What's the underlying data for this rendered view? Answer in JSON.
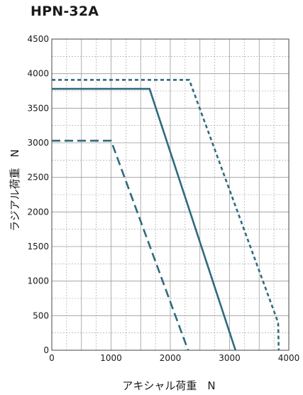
{
  "chart_data": {
    "type": "line",
    "title": "HPN-32A",
    "xlabel": "アキシャル荷重　N",
    "ylabel": "ラジアル荷重　N",
    "xlim": [
      0,
      4000
    ],
    "ylim": [
      0,
      4500
    ],
    "xticks": [
      "0",
      "1000",
      "2000",
      "3000",
      "4000"
    ],
    "yticks": [
      "0",
      "500",
      "1000",
      "1500",
      "2000",
      "2500",
      "3000",
      "3500",
      "4000",
      "4500"
    ],
    "grid": true,
    "colors": {
      "series": "#2f6b7d",
      "grid": "#9a9a9a"
    },
    "series": [
      {
        "style": "dashed",
        "x": [
          0,
          1000,
          2300
        ],
        "y": [
          3030,
          3030,
          0
        ]
      },
      {
        "style": "solid",
        "x": [
          0,
          1650,
          3100
        ],
        "y": [
          3780,
          3780,
          0
        ]
      },
      {
        "style": "dotted",
        "x": [
          0,
          2320,
          3820,
          3830
        ],
        "y": [
          3910,
          3910,
          400,
          0
        ]
      }
    ]
  }
}
